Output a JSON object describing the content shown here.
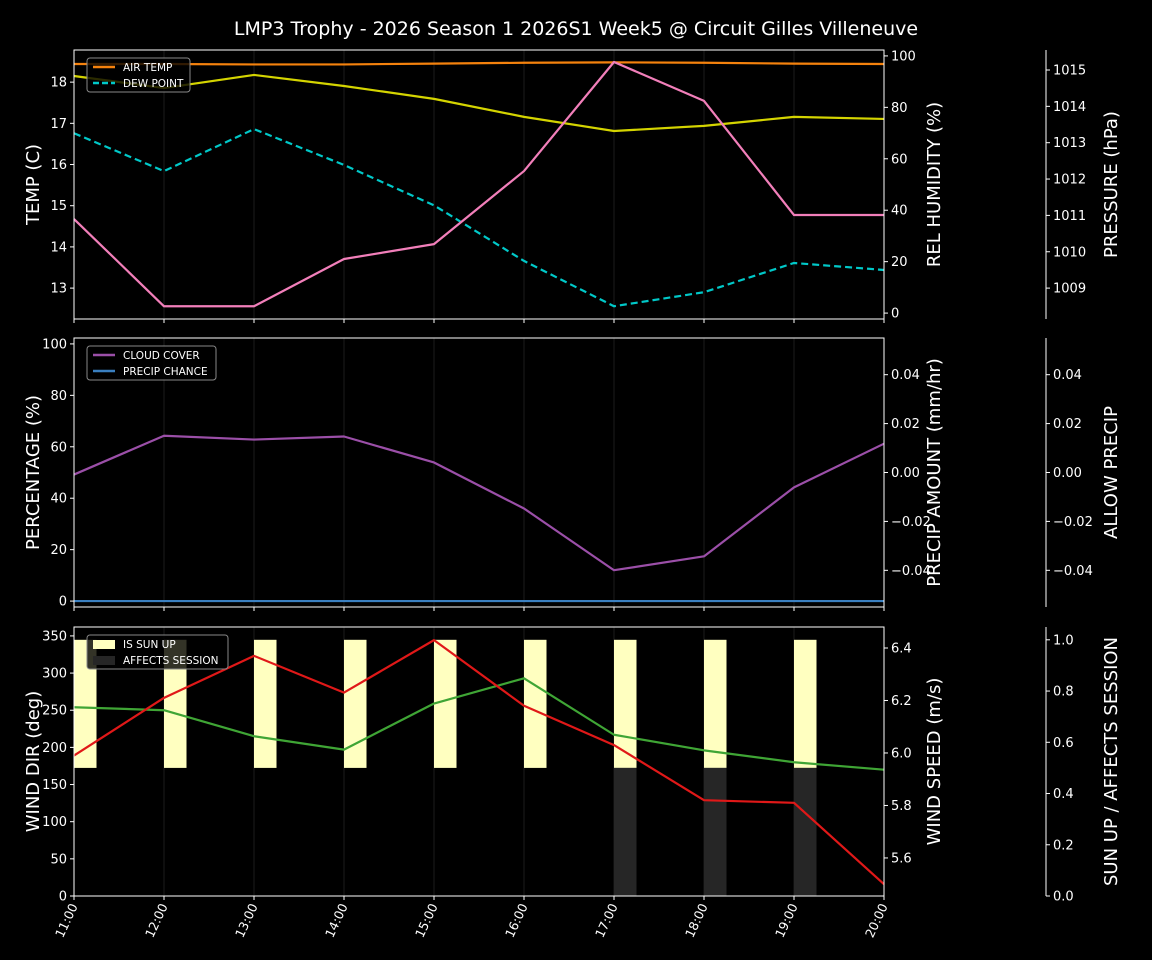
{
  "title": "LMP3 Trophy - 2026 Season 1 2026S1 Week5 @ Circuit Gilles Villeneuve",
  "chart_data": [
    {
      "type": "line",
      "x": [
        "11:00",
        "12:00",
        "13:00",
        "14:00",
        "15:00",
        "16:00",
        "17:00",
        "18:00",
        "19:00",
        "20:00"
      ],
      "grid": "vertical",
      "legend": {
        "placement": "top-left"
      },
      "axes": {
        "left": {
          "label": "TEMP (C)",
          "color": "#ffffff",
          "range": [
            12.25,
            18.78
          ],
          "ticks": [
            13,
            14,
            15,
            16,
            17,
            18
          ],
          "tick_labels": [
            "13",
            "14",
            "15",
            "16",
            "17",
            "18"
          ]
        },
        "right1": {
          "label": "REL HUMIDITY (%)",
          "color": "#d4d400",
          "range": [
            -2.3,
            102.3
          ],
          "ticks": [
            0,
            20,
            40,
            60,
            80,
            100
          ],
          "tick_labels": [
            "0",
            "20",
            "40",
            "60",
            "80",
            "100"
          ]
        },
        "right2": {
          "label": "PRESSURE (hPa)",
          "color": "#f27fba",
          "range": [
            1008.15,
            1015.55
          ],
          "ticks": [
            1009,
            1010,
            1011,
            1012,
            1013,
            1014,
            1015
          ],
          "tick_labels": [
            "1009",
            "1010",
            "1011",
            "1012",
            "1013",
            "1014",
            "1015"
          ]
        }
      },
      "series": [
        {
          "name": "AIR TEMP",
          "axis": "left",
          "color": "#f5820d",
          "style": "solid",
          "legend": true,
          "values": [
            18.44,
            18.44,
            18.43,
            18.43,
            18.45,
            18.47,
            18.48,
            18.47,
            18.45,
            18.44
          ]
        },
        {
          "name": "DEW POINT",
          "axis": "left",
          "color": "#00c8c8",
          "style": "dashed",
          "legend": true,
          "values": [
            16.76,
            15.84,
            16.86,
            15.99,
            15.01,
            13.66,
            12.56,
            12.9,
            13.61,
            13.44
          ]
        },
        {
          "axis": "right1",
          "color": "#d4d400",
          "style": "solid",
          "legend": false,
          "values": [
            92.2,
            87.5,
            92.6,
            88.3,
            83.3,
            76.3,
            70.8,
            72.8,
            76.3,
            75.5
          ]
        },
        {
          "axis": "right2",
          "color": "#f27fba",
          "style": "solid",
          "legend": false,
          "values": [
            1010.9,
            1008.5,
            1008.5,
            1009.8,
            1010.21,
            1012.22,
            1015.22,
            1014.15,
            1011.01,
            1011.01
          ]
        }
      ]
    },
    {
      "type": "line",
      "x": [
        "11:00",
        "12:00",
        "13:00",
        "14:00",
        "15:00",
        "16:00",
        "17:00",
        "18:00",
        "19:00",
        "20:00"
      ],
      "grid": "vertical",
      "legend": {
        "placement": "top-left"
      },
      "axes": {
        "left": {
          "label": "PERCENTAGE (%)",
          "color": "#ffffff",
          "range": [
            -2.3,
            102.3
          ],
          "ticks": [
            0,
            20,
            40,
            60,
            80,
            100
          ],
          "tick_labels": [
            "0",
            "20",
            "40",
            "60",
            "80",
            "100"
          ]
        },
        "right1": {
          "label": "PRECIP AMOUNT (mm/hr)",
          "color": "#a0592a",
          "range": [
            -0.055,
            0.055
          ],
          "ticks": [
            -0.04,
            -0.02,
            0,
            0.02,
            0.04
          ],
          "tick_labels": [
            "−0.04",
            "−0.02",
            "0.00",
            "0.02",
            "0.04"
          ]
        },
        "right2": {
          "label": "ALLOW PRECIP",
          "color": "#ffffff",
          "range": [
            -0.055,
            0.055
          ],
          "ticks": [
            -0.04,
            -0.02,
            0,
            0.02,
            0.04
          ],
          "tick_labels": [
            "−0.04",
            "−0.02",
            "0.00",
            "0.02",
            "0.04"
          ]
        }
      },
      "series": [
        {
          "name": "CLOUD COVER",
          "axis": "left",
          "color": "#9b4fa8",
          "style": "solid",
          "legend": true,
          "values": [
            49.2,
            64.3,
            62.8,
            64.0,
            53.9,
            36.0,
            12.0,
            17.4,
            44.2,
            61.2
          ]
        },
        {
          "name": "PRECIP CHANCE",
          "axis": "left",
          "color": "#3a7fc0",
          "style": "solid",
          "legend": true,
          "values": [
            0,
            0,
            0,
            0,
            0,
            0,
            0,
            0,
            0,
            0
          ]
        }
      ]
    },
    {
      "type": "line",
      "x": [
        "11:00",
        "12:00",
        "13:00",
        "14:00",
        "15:00",
        "16:00",
        "17:00",
        "18:00",
        "19:00",
        "20:00"
      ],
      "grid": "vertical",
      "legend": {
        "placement": "top-left"
      },
      "axes": {
        "left": {
          "label": "WIND DIR (deg)",
          "color": "#3fa535",
          "range": [
            0,
            362
          ],
          "ticks": [
            0,
            50,
            100,
            150,
            200,
            250,
            300,
            350
          ],
          "tick_labels": [
            "0",
            "50",
            "100",
            "150",
            "200",
            "250",
            "300",
            "350"
          ]
        },
        "right1": {
          "label": "WIND SPEED (m/s)",
          "color": "#e01818",
          "range": [
            5.455,
            6.48
          ],
          "ticks": [
            5.6,
            5.8,
            6.0,
            6.2,
            6.4
          ],
          "tick_labels": [
            "5.6",
            "5.8",
            "6.0",
            "6.2",
            "6.4"
          ]
        },
        "right2": {
          "label": "SUN UP / AFFECTS SESSION",
          "color": "#ffffff",
          "range": [
            0,
            1.05
          ],
          "ticks": [
            0,
            0.2,
            0.4,
            0.6,
            0.8,
            1.0
          ],
          "tick_labels": [
            "0.0",
            "0.2",
            "0.4",
            "0.6",
            "0.8",
            "1.0"
          ]
        }
      },
      "bars": [
        {
          "name": "IS SUN UP",
          "axis": "right2",
          "color": "#ffffc0",
          "legend": true,
          "values": [
            1,
            1,
            1,
            1,
            1,
            1,
            1,
            1,
            1,
            0
          ]
        },
        {
          "name": "AFFECTS SESSION",
          "axis": "right2",
          "color": "#262626",
          "legend": true,
          "values": [
            0,
            0,
            0,
            0,
            0,
            0,
            1,
            1,
            1,
            0
          ]
        }
      ],
      "series": [
        {
          "axis": "left",
          "color": "#3fa535",
          "style": "solid",
          "legend": false,
          "values": [
            254,
            250,
            215,
            197,
            259,
            293,
            217,
            196,
            180,
            170
          ]
        },
        {
          "axis": "right1",
          "color": "#e01818",
          "style": "solid",
          "legend": false,
          "values": [
            5.99,
            6.21,
            6.37,
            6.23,
            6.43,
            6.18,
            6.03,
            5.82,
            5.81,
            5.5
          ]
        }
      ]
    }
  ]
}
